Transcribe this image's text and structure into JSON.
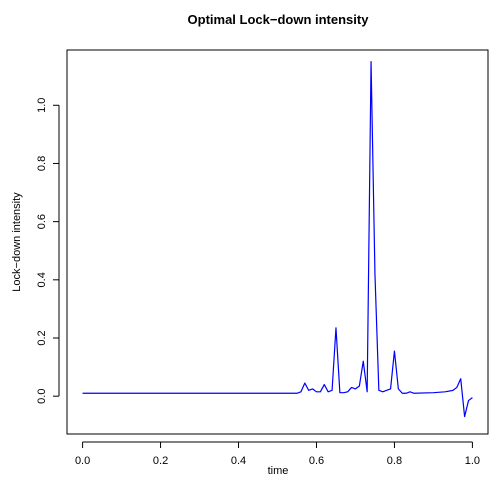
{
  "chart_data": {
    "type": "line",
    "title": "Optimal Lock−down intensity",
    "xlabel": "time",
    "ylabel": "Lock−down intensity",
    "xlim": [
      -0.04,
      1.04
    ],
    "ylim": [
      -0.13,
      1.19
    ],
    "x_ticks": [
      0.0,
      0.2,
      0.4,
      0.6,
      0.8,
      1.0
    ],
    "x_tick_labels": [
      "0.0",
      "0.2",
      "0.4",
      "0.6",
      "0.8",
      "1.0"
    ],
    "y_ticks": [
      0.0,
      0.2,
      0.4,
      0.6,
      0.8,
      1.0
    ],
    "y_tick_labels": [
      "0.0",
      "0.2",
      "0.4",
      "0.6",
      "0.8",
      "1.0"
    ],
    "line_color": "#0000ff",
    "grid": false,
    "series": [
      {
        "x": [
          0.0,
          0.1,
          0.2,
          0.3,
          0.4,
          0.5,
          0.55,
          0.56,
          0.57,
          0.58,
          0.59,
          0.6,
          0.61,
          0.62,
          0.63,
          0.64,
          0.65,
          0.66,
          0.67,
          0.68,
          0.69,
          0.7,
          0.71,
          0.72,
          0.73,
          0.74,
          0.75,
          0.76,
          0.77,
          0.78,
          0.79,
          0.8,
          0.81,
          0.82,
          0.83,
          0.84,
          0.85,
          0.9,
          0.93,
          0.95,
          0.96,
          0.97,
          0.98,
          0.99,
          1.0
        ],
        "y": [
          0.01,
          0.01,
          0.01,
          0.01,
          0.01,
          0.01,
          0.01,
          0.015,
          0.045,
          0.02,
          0.025,
          0.015,
          0.015,
          0.04,
          0.015,
          0.02,
          0.235,
          0.012,
          0.012,
          0.015,
          0.03,
          0.025,
          0.035,
          0.12,
          0.015,
          1.15,
          0.42,
          0.02,
          0.015,
          0.02,
          0.025,
          0.155,
          0.025,
          0.01,
          0.01,
          0.015,
          0.01,
          0.012,
          0.015,
          0.02,
          0.03,
          0.06,
          -0.07,
          -0.015,
          -0.005
        ]
      }
    ]
  }
}
